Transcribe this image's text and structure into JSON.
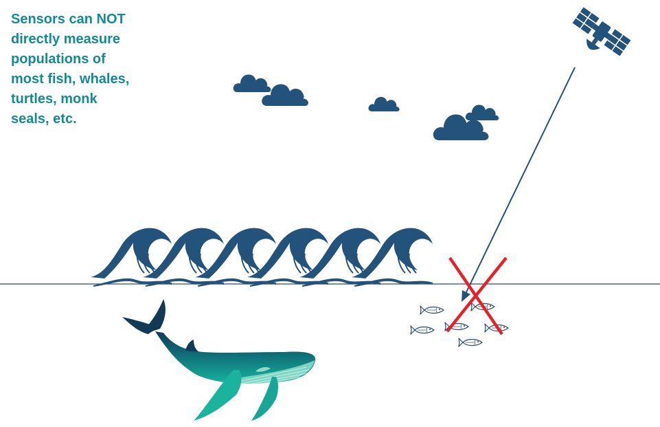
{
  "caption": {
    "lines": [
      "Sensors can NOT",
      "directly measure",
      "populations of",
      "most fish, whales,",
      "turtles, monk",
      "seals, etc."
    ]
  },
  "colors": {
    "navy": "#23527a",
    "caption_teal": "#138a96",
    "whale_top": "#123a57",
    "whale_mid": "#0f6e78",
    "whale_bottom": "#19b39e",
    "cross_red": "#e8202a",
    "sea_line": "#2b4c66",
    "fish_outline": "#2b4c66"
  },
  "icons": {
    "satellite": "satellite-icon",
    "cloud": "cloud-icon",
    "wave": "wave-icon",
    "whale": "whale-icon",
    "fish": "fish-icon",
    "cross": "red-x-icon"
  }
}
